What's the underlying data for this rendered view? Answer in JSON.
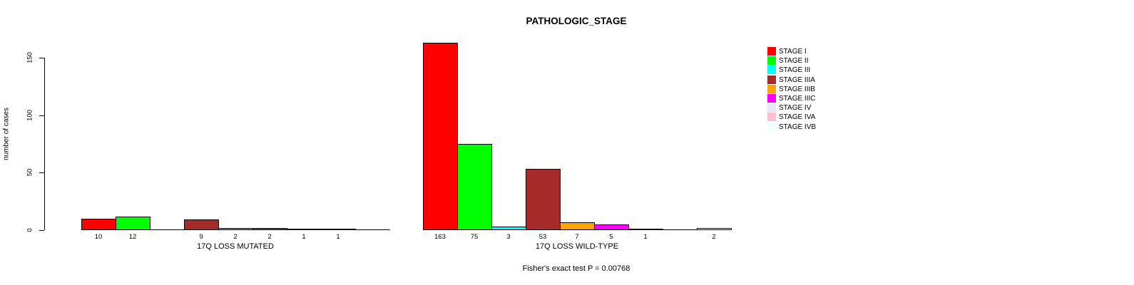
{
  "chart_data": {
    "type": "bar",
    "title": "PATHOLOGIC_STAGE",
    "ylabel": "number of cases",
    "xlabel": "",
    "ylim": [
      0,
      163
    ],
    "yticks": [
      0,
      50,
      100,
      150
    ],
    "grid": false,
    "legend_position": "right",
    "categories": [
      "STAGE I",
      "STAGE II",
      "STAGE III",
      "STAGE IIIA",
      "STAGE IIIB",
      "STAGE IIIC",
      "STAGE IV",
      "STAGE IVA",
      "STAGE IVB"
    ],
    "colors": [
      "#FF0000",
      "#00FF00",
      "#00FFFF",
      "#A52A2A",
      "#FFA500",
      "#FF00FF",
      "#E6E6FA",
      "#FFC0CB",
      "#F0FFFF"
    ],
    "series": [
      {
        "name": "17Q LOSS MUTATED",
        "values": [
          10,
          12,
          0,
          9,
          2,
          2,
          1,
          1,
          0
        ]
      },
      {
        "name": "17Q LOSS WILD-TYPE",
        "values": [
          163,
          75,
          3,
          53,
          7,
          5,
          1,
          0,
          2
        ]
      }
    ],
    "annotation": "Fisher's exact test P = 0.00768"
  }
}
